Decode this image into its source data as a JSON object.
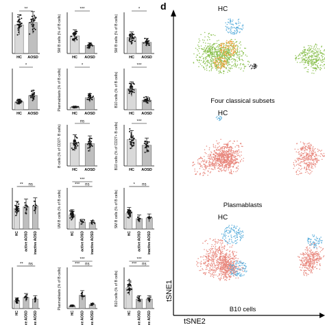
{
  "panel_letter": "d",
  "colors": {
    "hc_bar": "#d9d9d9",
    "aosd_bar": "#bfbfbf",
    "dot": "#1a1a1a",
    "tsne_green": "#8cc152",
    "tsne_orange": "#f2a03d",
    "tsne_blue": "#5aaedc",
    "tsne_black": "#222222",
    "tsne_pink": "#e8877d"
  },
  "tsne": {
    "axis_y": "tSNE1",
    "axis_x": "tSNE2",
    "panels": [
      {
        "title": "HC",
        "caption": "Four classical subsets",
        "scheme": "four"
      },
      {
        "title": "HC",
        "caption": "Plasmablasts",
        "scheme": "plasma"
      },
      {
        "title": "HC",
        "caption": "B10 cells",
        "scheme": "b10"
      }
    ]
  },
  "chart_data": [
    {
      "type": "bar",
      "ylabel": "",
      "categories": [
        "HC",
        "AOSD"
      ],
      "values": [
        72,
        78
      ],
      "sig": "**",
      "ylim": [
        0,
        100
      ]
    },
    {
      "type": "bar",
      "ylabel": "SM B cells (% of B cells)",
      "categories": [
        "HC",
        "AOSD"
      ],
      "values": [
        22,
        10
      ],
      "sig": "***",
      "ylim": [
        0,
        50
      ]
    },
    {
      "type": "bar",
      "ylabel": "SM B cells (% of B cells)",
      "categories": [
        "HC",
        "AOSD"
      ],
      "values": [
        20,
        14
      ],
      "sig": "*",
      "ylim": [
        0,
        50
      ]
    },
    {
      "type": "bar",
      "ylabel": "",
      "categories": [
        "HC",
        "AOSD"
      ],
      "values": [
        10,
        18
      ],
      "sig": "*",
      "ylim": [
        0,
        50
      ]
    },
    {
      "type": "bar",
      "ylabel": "Plasmablasts (% of B cells)",
      "categories": [
        "HC",
        "AOSD"
      ],
      "values": [
        2,
        9
      ],
      "sig": "*",
      "ylim": [
        0,
        30
      ]
    },
    {
      "type": "bar",
      "ylabel": "B10 cells (% of B cells)",
      "categories": [
        "HC",
        "AOSD"
      ],
      "values": [
        26,
        12
      ],
      "sig": "***",
      "ylim": [
        0,
        50
      ]
    },
    {
      "type": "bar",
      "ylabel": "B cells (% of CD27- B cells)",
      "categories": [
        "HC",
        "AOSD"
      ],
      "values": [
        58,
        56
      ],
      "sig": "ns",
      "ylim": [
        0,
        100
      ]
    },
    {
      "type": "bar",
      "ylabel": "B10 cells (% of CD27+ B cells)",
      "categories": [
        "HC",
        "AOSD"
      ],
      "values": [
        66,
        52
      ],
      "sig": "***",
      "ylim": [
        0,
        100
      ]
    },
    {
      "type": "bar",
      "ylabel": "",
      "categories": [
        "HC",
        "active AOSD",
        "inactive AOSD"
      ],
      "values": [
        52,
        56,
        58
      ],
      "sig": [
        "**",
        "ns"
      ],
      "ylim": [
        0,
        100
      ]
    },
    {
      "type": "bar",
      "ylabel": "UM B cells (% of B cells)",
      "categories": [
        "HC",
        "active AOSD",
        "inactive AOSD"
      ],
      "values": [
        18,
        9,
        8
      ],
      "sig": [
        "***",
        "ns",
        "***"
      ],
      "ylim": [
        0,
        50
      ]
    },
    {
      "type": "bar",
      "ylabel": "SM B cells (% of B cells)",
      "categories": [
        "HC",
        "active AOSD",
        "inactive AOSD"
      ],
      "values": [
        20,
        13,
        14
      ],
      "sig": [
        "*",
        "ns"
      ],
      "ylim": [
        0,
        50
      ]
    },
    {
      "type": "bar",
      "ylabel": "",
      "categories": [
        "HC",
        "active AOSD",
        "inactive AOSD"
      ],
      "values": [
        10,
        14,
        12
      ],
      "sig": [
        "**",
        "ns"
      ],
      "ylim": [
        0,
        50
      ]
    },
    {
      "type": "bar",
      "ylabel": "Plasmablasts (% of B cells)",
      "categories": [
        "HC",
        "active AOSD",
        "inactive AOSD"
      ],
      "values": [
        2,
        10,
        3
      ],
      "sig": [
        "***",
        "ns",
        "***"
      ],
      "ylim": [
        0,
        30
      ]
    },
    {
      "type": "bar",
      "ylabel": "B10 cells (% of B cells)",
      "categories": [
        "HC",
        "active AOSD",
        "inactive AOSD"
      ],
      "values": [
        26,
        12,
        12
      ],
      "sig": [
        "***",
        "ns",
        "***"
      ],
      "ylim": [
        0,
        50
      ]
    }
  ]
}
